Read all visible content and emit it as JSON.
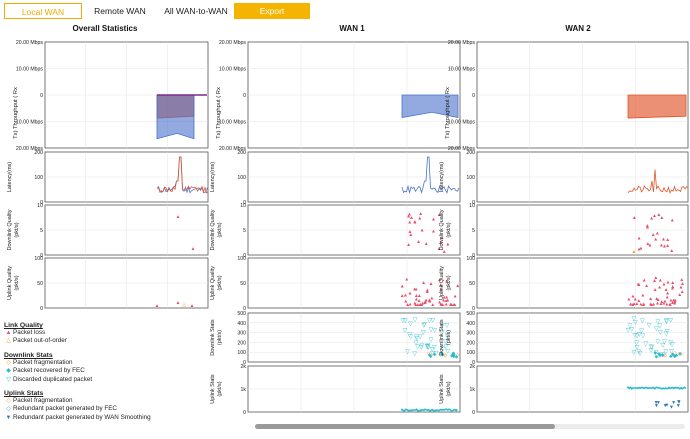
{
  "tabs": {
    "local": "Local WAN",
    "remote": "Remote WAN",
    "all": "All WAN-to-WAN",
    "export": "Export"
  },
  "titles": {
    "overall": "Overall Statistics",
    "wan1": "WAN 1",
    "wan2": "WAN 2"
  },
  "axes": {
    "throughput_ticks": [
      "20.00 Mbps",
      "10.00 Mbps",
      "0",
      "10.00 Mbps",
      "20.00 Mbps"
    ],
    "latency_ticks": [
      "200",
      "100",
      "0"
    ],
    "quality_ticks": [
      "10",
      "5",
      "0"
    ],
    "quality_ticks_b": [
      "100",
      "50",
      "0"
    ],
    "downlink_ticks": [
      "500",
      "400",
      "300",
      "200",
      "100",
      "0"
    ],
    "uplink_ticks": [
      "2k",
      "1k",
      "0"
    ],
    "throughput_label": "Tx) Throughput ( Rx",
    "latency_label": "Latency(ms)",
    "downlink_quality_label": "Downlink Quality (pkt/s)",
    "uplink_quality_label": "Uplink Quality (pkt/s)",
    "downlink_stats_label": "Downlink Stats (pkt/s)",
    "uplink_stats_label": "Uplink Stats (pkt/s)"
  },
  "legend": {
    "link_quality": {
      "title": "Link Quality",
      "items": [
        "Packet loss",
        "Packet out-of-order"
      ]
    },
    "downlink": {
      "title": "Downlink Stats",
      "items": [
        "Packet fragmentation",
        "Packet recovered by FEC",
        "Discarded duplicated packet"
      ]
    },
    "uplink": {
      "title": "Uplink Stats",
      "items": [
        "Packet fragmentation",
        "Redundant packet generated by FEC",
        "Redundant packet generated by WAN Smoothing"
      ]
    }
  },
  "colors": {
    "accent": "#f5a800",
    "wan1": "#4a72cc",
    "wan2": "#e0552a",
    "loss": "#e8506e",
    "ooo": "#f2a01a",
    "fec": "#2abcd0",
    "smoothing": "#2a7ab8",
    "purple": "#7a2a8a"
  }
}
